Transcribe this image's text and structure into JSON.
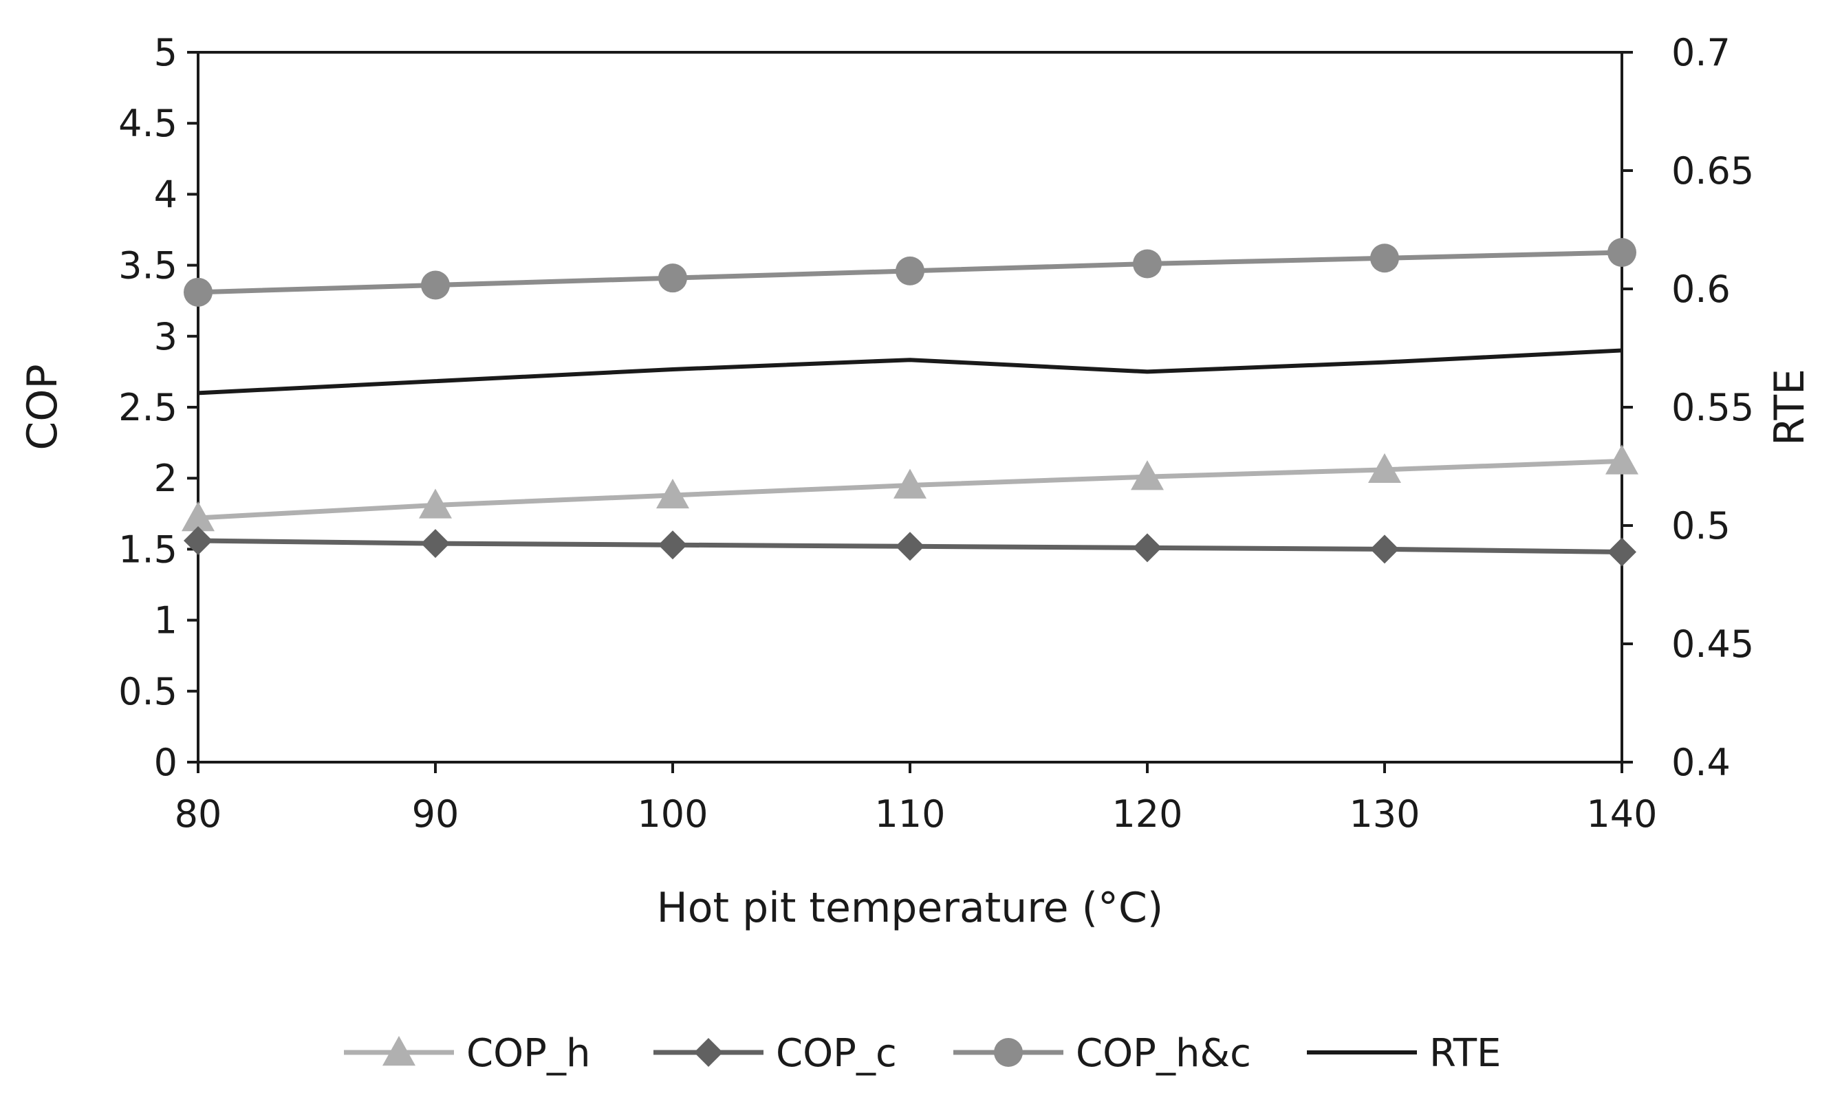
{
  "chart_data": {
    "type": "line",
    "title": "",
    "xlabel": "Hot pit temperature (°C)",
    "ylabel": "COP",
    "y2label": "RTE",
    "x": [
      80,
      90,
      100,
      110,
      120,
      130,
      140
    ],
    "x_ticks": [
      "80",
      "90",
      "100",
      "110",
      "120",
      "130",
      "140"
    ],
    "xlim": [
      80,
      140
    ],
    "ylim": [
      0,
      5
    ],
    "y_ticks": [
      "0",
      "0.5",
      "1",
      "1.5",
      "2",
      "2.5",
      "3",
      "3.5",
      "4",
      "4.5",
      "5"
    ],
    "y2lim": [
      0.4,
      0.7
    ],
    "y2_ticks": [
      "0.4",
      "0.45",
      "0.5",
      "0.55",
      "0.6",
      "0.65",
      "0.7"
    ],
    "grid": false,
    "legend_position": "bottom",
    "series": [
      {
        "name": "COP_h",
        "axis": "left",
        "marker": "triangle",
        "color": "#b0b0b0",
        "values": [
          1.72,
          1.81,
          1.88,
          1.95,
          2.01,
          2.06,
          2.12
        ]
      },
      {
        "name": "COP_c",
        "axis": "left",
        "marker": "diamond",
        "color": "#616161",
        "values": [
          1.56,
          1.54,
          1.53,
          1.52,
          1.51,
          1.5,
          1.48
        ]
      },
      {
        "name": "COP_h&c",
        "axis": "left",
        "marker": "circle",
        "color": "#8c8c8c",
        "values": [
          3.31,
          3.36,
          3.41,
          3.46,
          3.51,
          3.55,
          3.59
        ]
      },
      {
        "name": "RTE",
        "axis": "right",
        "marker": "none",
        "color": "#1a1a1a",
        "values": [
          0.556,
          0.561,
          0.566,
          0.57,
          0.565,
          0.569,
          0.574
        ]
      }
    ]
  }
}
